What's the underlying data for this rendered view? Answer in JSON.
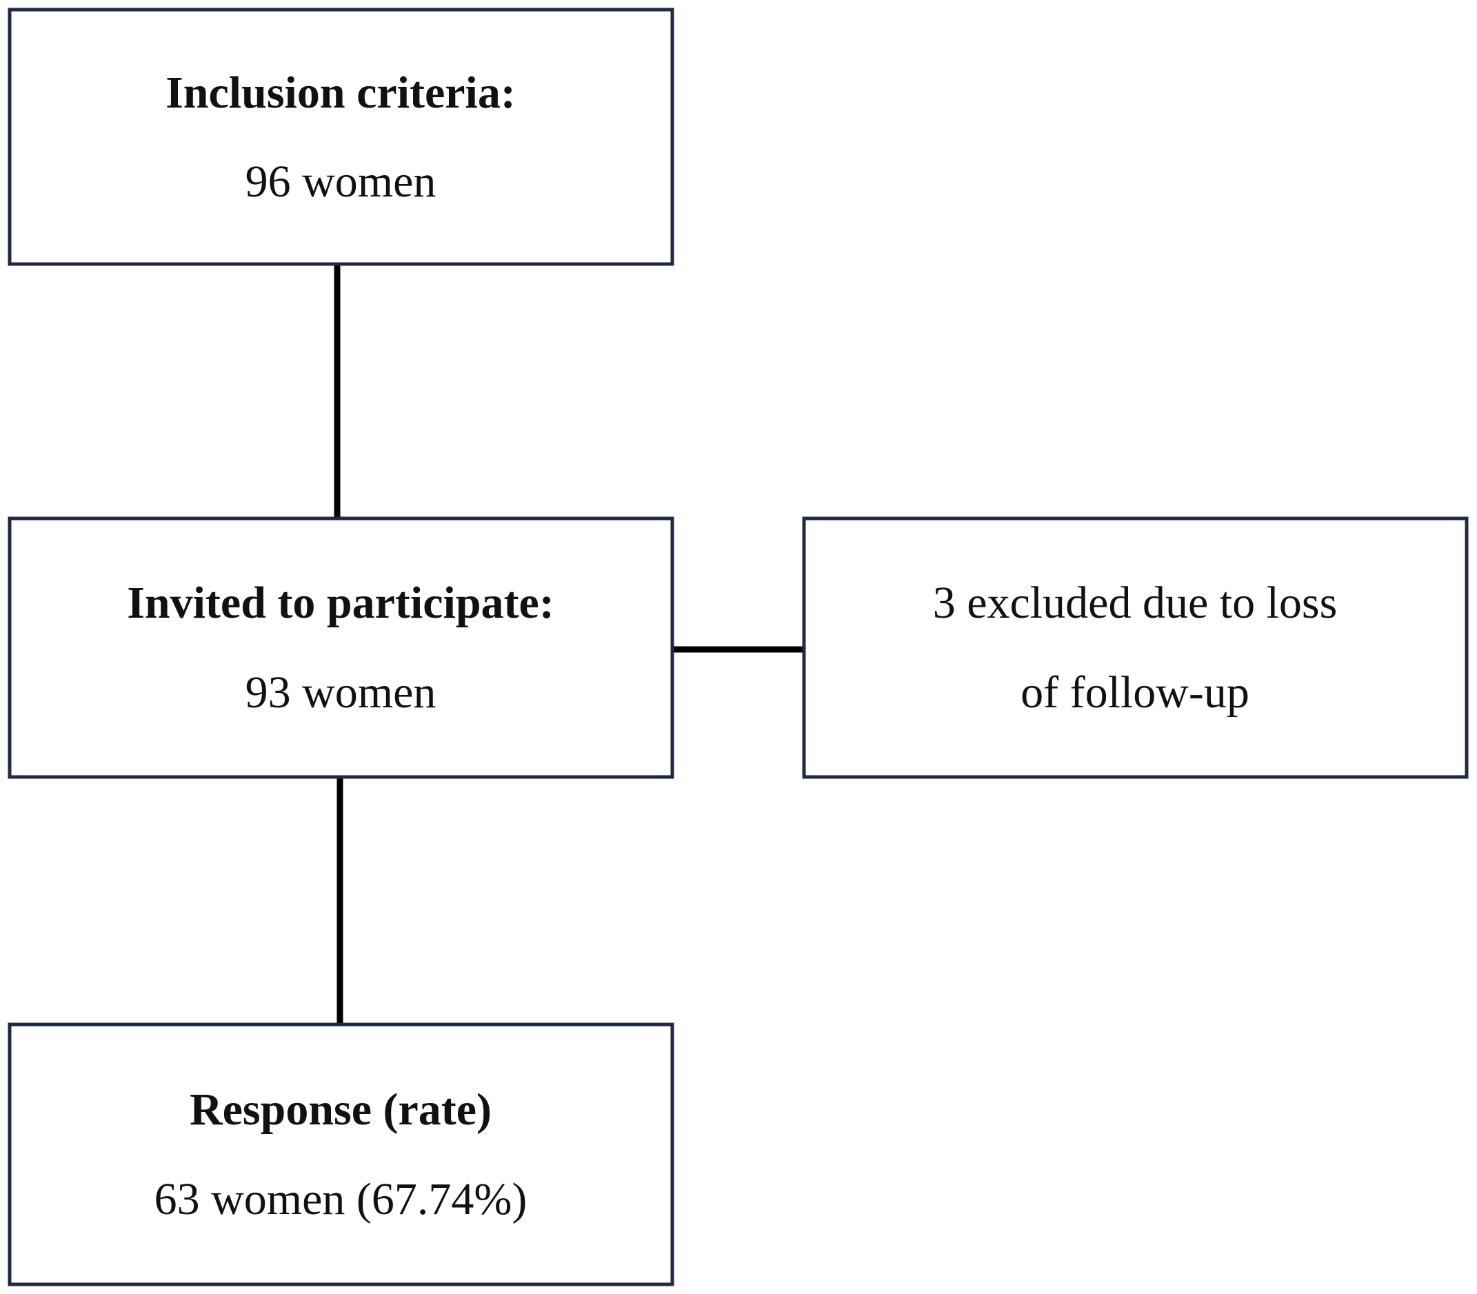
{
  "nodes": [
    {
      "title": "Inclusion criteria:",
      "lines": [
        "96 women"
      ]
    },
    {
      "title": "Invited to participate:",
      "lines": [
        "93 women"
      ]
    },
    {
      "lines": [
        "3 excluded due to loss",
        "of follow-up"
      ]
    },
    {
      "title": "Response (rate)",
      "lines": [
        "63 women (67.74%)"
      ]
    }
  ]
}
